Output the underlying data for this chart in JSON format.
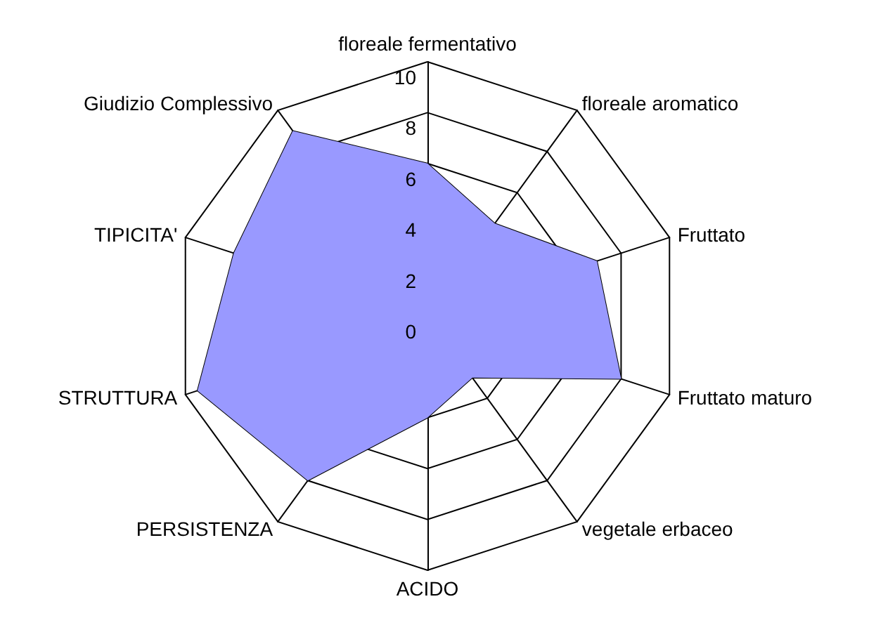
{
  "chart_data": {
    "type": "radar",
    "categories": [
      "floreale fermentativo",
      "floreale aromatico",
      "Fruttato",
      "Fruttato maturo",
      "vegetale erbaceo",
      "ACIDO",
      "PERSISTENZA",
      "STRUTTURA",
      "TIPICITA'",
      "Giudizio Complessivo"
    ],
    "series": [
      {
        "color": "#9999ff",
        "values": [
          6,
          4.5,
          7,
          8,
          3,
          4,
          8,
          9.5,
          8,
          9
        ]
      }
    ],
    "ylim": [
      0,
      10
    ],
    "yticks": [
      0,
      2,
      4,
      6,
      8,
      10
    ],
    "marker": "none"
  }
}
